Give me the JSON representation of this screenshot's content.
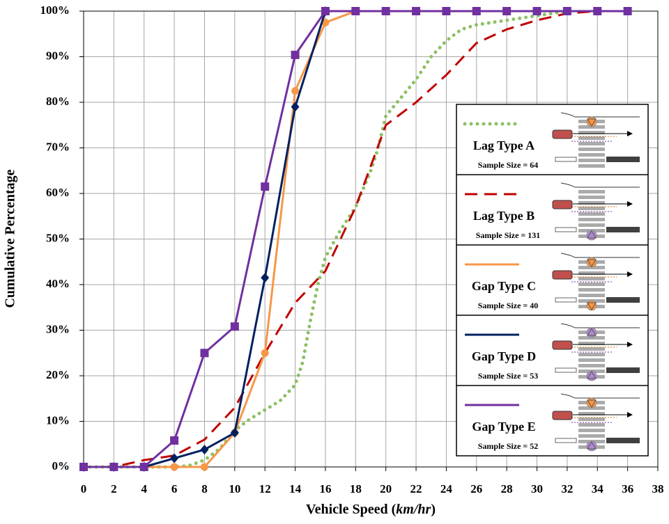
{
  "chart_data": {
    "type": "line",
    "xlabel_parts": [
      "Vehicle Speed (",
      "km/hr",
      ")"
    ],
    "ylabel": "Cumulative Percentage",
    "xlim": [
      0,
      38
    ],
    "xticks": [
      0,
      2,
      4,
      6,
      8,
      10,
      12,
      14,
      16,
      18,
      20,
      22,
      24,
      26,
      28,
      30,
      32,
      34,
      36,
      38
    ],
    "ylim": [
      0,
      100
    ],
    "yticks": [
      {
        "value": 0,
        "label": "0%"
      },
      {
        "value": 10,
        "label": "10%"
      },
      {
        "value": 20,
        "label": "20%"
      },
      {
        "value": 30,
        "label": "30%"
      },
      {
        "value": 40,
        "label": "40%"
      },
      {
        "value": 50,
        "label": "50%"
      },
      {
        "value": 60,
        "label": "60%"
      },
      {
        "value": 70,
        "label": "70%"
      },
      {
        "value": 80,
        "label": "80%"
      },
      {
        "value": 90,
        "label": "90%"
      },
      {
        "value": 100,
        "label": "100%"
      }
    ],
    "grid": true,
    "legend": "right",
    "series": [
      {
        "name": "Lag Type A",
        "sample_size": "Sample Size = 64",
        "color": "#8cc063",
        "style": "dotted",
        "marker": null,
        "x": [
          0,
          2,
          4,
          6,
          7,
          8,
          9,
          10,
          11,
          12,
          13,
          14,
          14.5,
          15,
          15.5,
          16,
          17,
          18,
          19,
          19.5,
          20,
          21,
          22,
          23,
          24,
          25,
          26,
          28,
          30,
          31,
          32
        ],
        "values": [
          0,
          0,
          0,
          0,
          0.3,
          1.5,
          4,
          8,
          10.5,
          12.5,
          14.5,
          18,
          23,
          32,
          40,
          46,
          52,
          57,
          65,
          70,
          77,
          81,
          85,
          90,
          93.5,
          96,
          97,
          98,
          99,
          99.5,
          100
        ]
      },
      {
        "name": "Lag Type B",
        "sample_size": "Sample Size = 131",
        "color": "#c00000",
        "style": "dashed",
        "marker": null,
        "x": [
          0,
          2,
          4,
          6,
          8,
          10,
          12,
          14,
          16,
          18,
          20,
          22,
          24,
          26,
          28,
          30,
          32,
          34,
          36
        ],
        "values": [
          0,
          0,
          1.5,
          2.5,
          6,
          13,
          25,
          36,
          43,
          57,
          75,
          80,
          86,
          93,
          96,
          98,
          99.5,
          100,
          100
        ]
      },
      {
        "name": "Gap Type C",
        "sample_size": "Sample Size = 40",
        "color": "#f79646",
        "style": "solid",
        "marker": "circle",
        "x": [
          0,
          2,
          4,
          6,
          8,
          10,
          12,
          14,
          16,
          18
        ],
        "values": [
          0,
          0,
          0,
          0,
          0,
          7.5,
          25,
          82.5,
          97.5,
          100
        ]
      },
      {
        "name": "Gap Type D",
        "sample_size": "Sample Size = 53",
        "color": "#002060",
        "style": "solid",
        "marker": "diamond",
        "x": [
          0,
          2,
          4,
          6,
          8,
          10,
          12,
          14,
          16
        ],
        "values": [
          0,
          0,
          0,
          1.9,
          3.8,
          7.5,
          41.5,
          79,
          100
        ]
      },
      {
        "name": "Gap Type E",
        "sample_size": "Sample Size = 52",
        "color": "#7030a0",
        "style": "solid",
        "marker": "square",
        "x": [
          0,
          2,
          4,
          6,
          8,
          10,
          12,
          14,
          16,
          18,
          20,
          22,
          24,
          26,
          28,
          30,
          32,
          34,
          36
        ],
        "values": [
          0,
          0,
          0,
          5.8,
          25,
          30.8,
          61.5,
          90.4,
          100,
          100,
          100,
          100,
          100,
          100,
          100,
          100,
          100,
          100,
          100
        ]
      }
    ]
  }
}
